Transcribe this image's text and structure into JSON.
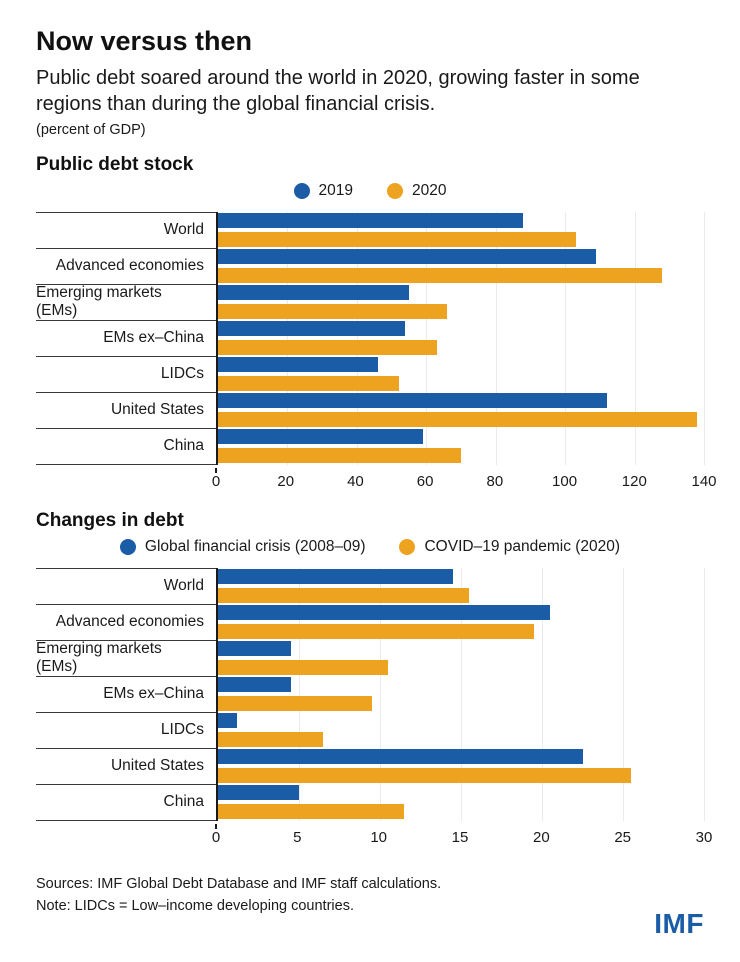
{
  "header": {
    "title": "Now versus then",
    "subtitle": "Public debt soared around the world in 2020, growing faster in some regions than during the global financial crisis.",
    "unit": "(percent of GDP)"
  },
  "colors": {
    "blue": "#1B5CA7",
    "orange": "#EEA320"
  },
  "chart_data": [
    {
      "type": "bar",
      "orientation": "horizontal",
      "title": "Public debt stock",
      "legend": [
        {
          "label": "2019",
          "color": "#1B5CA7"
        },
        {
          "label": "2020",
          "color": "#EEA320"
        }
      ],
      "categories": [
        "World",
        "Advanced economies",
        "Emerging markets (EMs)",
        "EMs ex–China",
        "LIDCs",
        "United States",
        "China"
      ],
      "series": [
        {
          "name": "2019",
          "values": [
            88,
            109,
            55,
            54,
            46,
            112,
            59
          ]
        },
        {
          "name": "2020",
          "values": [
            103,
            128,
            66,
            63,
            52,
            138,
            70
          ]
        }
      ],
      "xlim": [
        0,
        140
      ],
      "ticks": [
        0,
        20,
        40,
        60,
        80,
        100,
        120,
        140
      ],
      "grid": true,
      "legend_position": "top-center"
    },
    {
      "type": "bar",
      "orientation": "horizontal",
      "title": "Changes in debt",
      "legend": [
        {
          "label": "Global financial crisis (2008–09)",
          "color": "#1B5CA7"
        },
        {
          "label": "COVID–19 pandemic (2020)",
          "color": "#EEA320"
        }
      ],
      "categories": [
        "World",
        "Advanced economies",
        "Emerging markets (EMs)",
        "EMs ex–China",
        "LIDCs",
        "United States",
        "China"
      ],
      "series": [
        {
          "name": "Global financial crisis (2008–09)",
          "values": [
            14.5,
            20.5,
            4.5,
            4.5,
            1.2,
            22.5,
            5
          ]
        },
        {
          "name": "COVID–19 pandemic (2020)",
          "values": [
            15.5,
            19.5,
            10.5,
            9.5,
            6.5,
            25.5,
            11.5
          ]
        }
      ],
      "xlim": [
        0,
        30
      ],
      "ticks": [
        0,
        5,
        10,
        15,
        20,
        25,
        30
      ],
      "grid": true,
      "legend_position": "top-center"
    }
  ],
  "footer": {
    "sources": "Sources: IMF Global Debt Database and IMF staff calculations.",
    "note": "Note: LIDCs = Low–income developing countries.",
    "logo": "IMF"
  }
}
